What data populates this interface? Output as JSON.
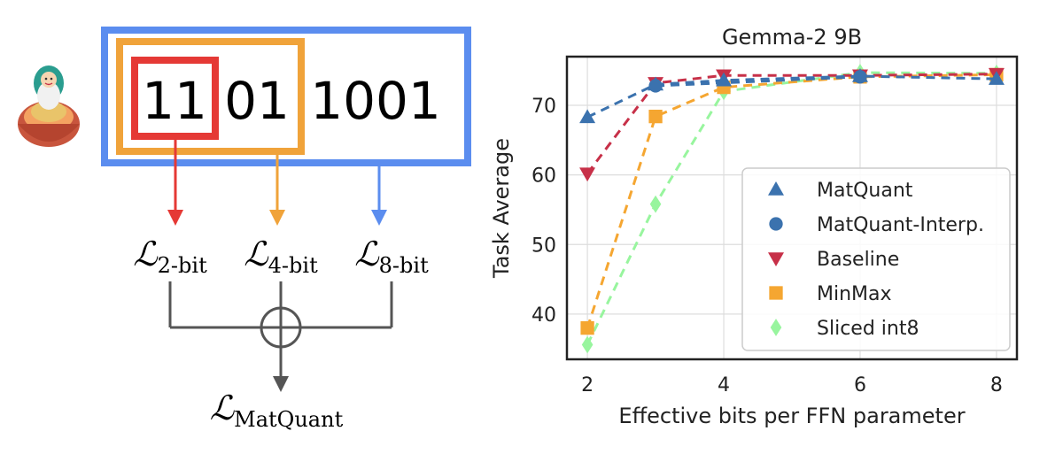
{
  "diagram": {
    "bits": {
      "part_2bit": "11",
      "part_4bit": "01",
      "part_8bit": "1001"
    },
    "losses": {
      "l2": {
        "symbol": "ℒ",
        "subscript": "2-bit"
      },
      "l4": {
        "symbol": "ℒ",
        "subscript": "4-bit"
      },
      "l8": {
        "symbol": "ℒ",
        "subscript": "8-bit"
      },
      "total": {
        "symbol": "ℒ",
        "subscript": "MatQuant"
      }
    },
    "colors": {
      "red": "#e53935",
      "orange": "#f0a33a",
      "blue": "#5b8def",
      "gray": "#555555"
    },
    "icon": "matryoshka-doll-icon"
  },
  "chart_data": {
    "type": "line",
    "title": "Gemma-2 9B",
    "xlabel": "Effective bits per FFN parameter",
    "ylabel": "Task Average",
    "xlim": [
      1.7,
      8.3
    ],
    "ylim": [
      33.5,
      77
    ],
    "xticks": [
      2,
      4,
      6,
      8
    ],
    "yticks": [
      40,
      50,
      60,
      70
    ],
    "grid": true,
    "legend_position": "bottom-right",
    "series": [
      {
        "name": "MatQuant",
        "marker": "triangle-up",
        "color": "#3b72ae",
        "x": [
          2,
          3,
          4,
          6,
          8
        ],
        "y": [
          68.3,
          73.0,
          73.6,
          74.2,
          73.8
        ]
      },
      {
        "name": "MatQuant-Interp.",
        "marker": "circle",
        "color": "#3b72ae",
        "x": [
          3,
          6
        ],
        "y": [
          72.8,
          74.1
        ]
      },
      {
        "name": "Baseline",
        "marker": "triangle-down",
        "color": "#c73048",
        "x": [
          2,
          3,
          4,
          6,
          8
        ],
        "y": [
          60.2,
          73.2,
          74.3,
          74.3,
          74.5
        ]
      },
      {
        "name": "MinMax",
        "marker": "square",
        "color": "#f5a631",
        "x": [
          2,
          3,
          4,
          6,
          8
        ],
        "y": [
          38.0,
          68.4,
          72.6,
          74.1,
          74.4
        ]
      },
      {
        "name": "Sliced int8",
        "marker": "diamond",
        "color": "#98f59e",
        "x": [
          2,
          3,
          4,
          6,
          8
        ],
        "y": [
          35.6,
          55.8,
          72.0,
          74.7,
          74.6
        ]
      }
    ]
  }
}
